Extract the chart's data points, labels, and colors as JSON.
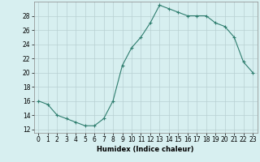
{
  "x": [
    0,
    1,
    2,
    3,
    4,
    5,
    6,
    7,
    8,
    9,
    10,
    11,
    12,
    13,
    14,
    15,
    16,
    17,
    18,
    19,
    20,
    21,
    22,
    23
  ],
  "y": [
    16,
    15.5,
    14,
    13.5,
    13,
    12.5,
    12.5,
    13.5,
    16,
    21,
    23.5,
    25,
    27,
    29.5,
    29,
    28.5,
    28,
    28,
    28,
    27,
    26.5,
    25,
    21.5,
    20
  ],
  "line_color": "#2e7d6e",
  "marker": "+",
  "marker_size": 3,
  "bg_color": "#d7eff0",
  "grid_color": "#b8d0d2",
  "xlabel": "Humidex (Indice chaleur)",
  "xlim": [
    -0.5,
    23.5
  ],
  "ylim": [
    11.5,
    30
  ],
  "yticks": [
    12,
    14,
    16,
    18,
    20,
    22,
    24,
    26,
    28
  ],
  "xticks": [
    0,
    1,
    2,
    3,
    4,
    5,
    6,
    7,
    8,
    9,
    10,
    11,
    12,
    13,
    14,
    15,
    16,
    17,
    18,
    19,
    20,
    21,
    22,
    23
  ],
  "xlabel_fontsize": 6.0,
  "tick_fontsize": 5.5
}
